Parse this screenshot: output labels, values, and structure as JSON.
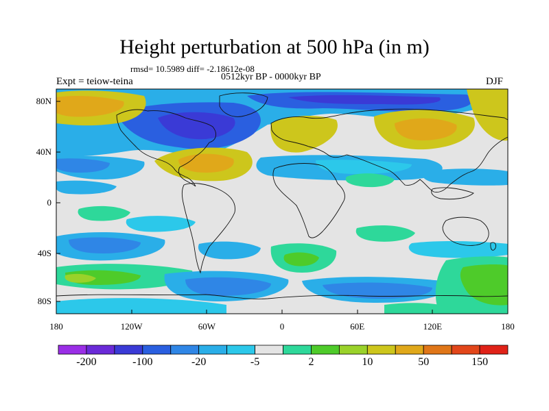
{
  "header": {
    "title": "Height perturbation at 500 hPa (in m)",
    "stats": "rmsd= 10.5989 diff= -2.18612e-08",
    "period": "0512kyr BP - 0000kyr BP",
    "experiment": "Expt = teiow-teina",
    "season": "DJF"
  },
  "chart_data": {
    "type": "heatmap",
    "title": "Height perturbation at 500 hPa (in m)",
    "subtitle": "0512kyr BP - 0000kyr BP",
    "statistics": {
      "rmsd": 10.5989,
      "diff": -2.18612e-08
    },
    "experiment": "teiow-teina",
    "season": "DJF",
    "units": "m",
    "x_axis": {
      "range": [
        -180,
        180
      ],
      "ticks": [
        "180",
        "120W",
        "60W",
        "0",
        "60E",
        "120E",
        "180"
      ]
    },
    "y_axis": {
      "range": [
        -90,
        90
      ],
      "ticks": [
        "80N",
        "40N",
        "0",
        "40S",
        "80S"
      ]
    },
    "colorbar": {
      "colors": [
        "#9a2ee6",
        "#6a2ad8",
        "#3a3ad6",
        "#2a5fe0",
        "#2f86e6",
        "#2aaee8",
        "#2cc8ea",
        "#e4e4e4",
        "#2ed89a",
        "#4ecb2a",
        "#9ad22a",
        "#cdc61c",
        "#e0a81a",
        "#e07618",
        "#e2461a",
        "#e02218"
      ],
      "labels": [
        "-200",
        "-100",
        "-20",
        "-5",
        "2",
        "10",
        "50",
        "150"
      ]
    },
    "anomalies": [
      {
        "name": "North America / Greenland low",
        "lon": -80,
        "lat": 60,
        "sign": "negative",
        "approx_m": -100
      },
      {
        "name": "Northern Eurasia low",
        "lon": 70,
        "lat": 80,
        "sign": "negative",
        "approx_m": -100
      },
      {
        "name": "Europe / North Atlantic high",
        "lon": 10,
        "lat": 55,
        "sign": "positive",
        "approx_m": 50
      },
      {
        "name": "Southeast US / subtropical Atlantic high",
        "lon": -60,
        "lat": 35,
        "sign": "positive",
        "approx_m": 50
      },
      {
        "name": "North Pacific / East Asia high",
        "lon": 100,
        "lat": 52,
        "sign": "positive",
        "approx_m": 50
      },
      {
        "name": "Bering Sea high",
        "lon": -175,
        "lat": 72,
        "sign": "positive",
        "approx_m": 50
      },
      {
        "name": "Southern Ocean ring (south of Africa/Indian Ocean)",
        "lon": 40,
        "lat": -60,
        "sign": "negative",
        "approx_m": -20
      },
      {
        "name": "South Pacific / Australia high",
        "lon": 160,
        "lat": -58,
        "sign": "positive",
        "approx_m": 10
      }
    ]
  }
}
